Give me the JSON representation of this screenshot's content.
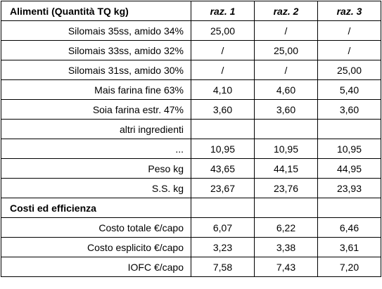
{
  "table": {
    "header": [
      "Alimenti (Quantità TQ kg)",
      "raz. 1",
      "raz. 2",
      "raz. 3"
    ],
    "rows": [
      {
        "label": "Silomais 35ss, amido 34%",
        "values": [
          "25,00",
          "/",
          "/"
        ]
      },
      {
        "label": "Silomais 33ss, amido 32%",
        "values": [
          "/",
          "25,00",
          "/"
        ]
      },
      {
        "label": "Silomais 31ss, amido 30%",
        "values": [
          "/",
          "/",
          "25,00"
        ]
      },
      {
        "label": "Mais farina fine 63%",
        "values": [
          "4,10",
          "4,60",
          "5,40"
        ]
      },
      {
        "label": "Soia farina estr. 47%",
        "values": [
          "3,60",
          "3,60",
          "3,60"
        ]
      },
      {
        "label": "altri ingredienti"
      },
      {
        "label": "...",
        "values": [
          "10,95",
          "10,95",
          "10,95"
        ]
      },
      {
        "label": "Peso kg",
        "values": [
          "43,65",
          "44,15",
          "44,95"
        ]
      },
      {
        "label": "S.S. kg",
        "values": [
          "23,67",
          "23,76",
          "23,93"
        ]
      },
      {
        "section": "Costi ed efficienza"
      },
      {
        "label": "Costo totale €/capo",
        "values": [
          "6,07",
          "6,22",
          "6,46"
        ]
      },
      {
        "label": "Costo esplicito €/capo",
        "values": [
          "3,23",
          "3,38",
          "3,61"
        ]
      },
      {
        "label": "IOFC €/capo",
        "values": [
          "7,58",
          "7,43",
          "7,20"
        ]
      }
    ]
  }
}
